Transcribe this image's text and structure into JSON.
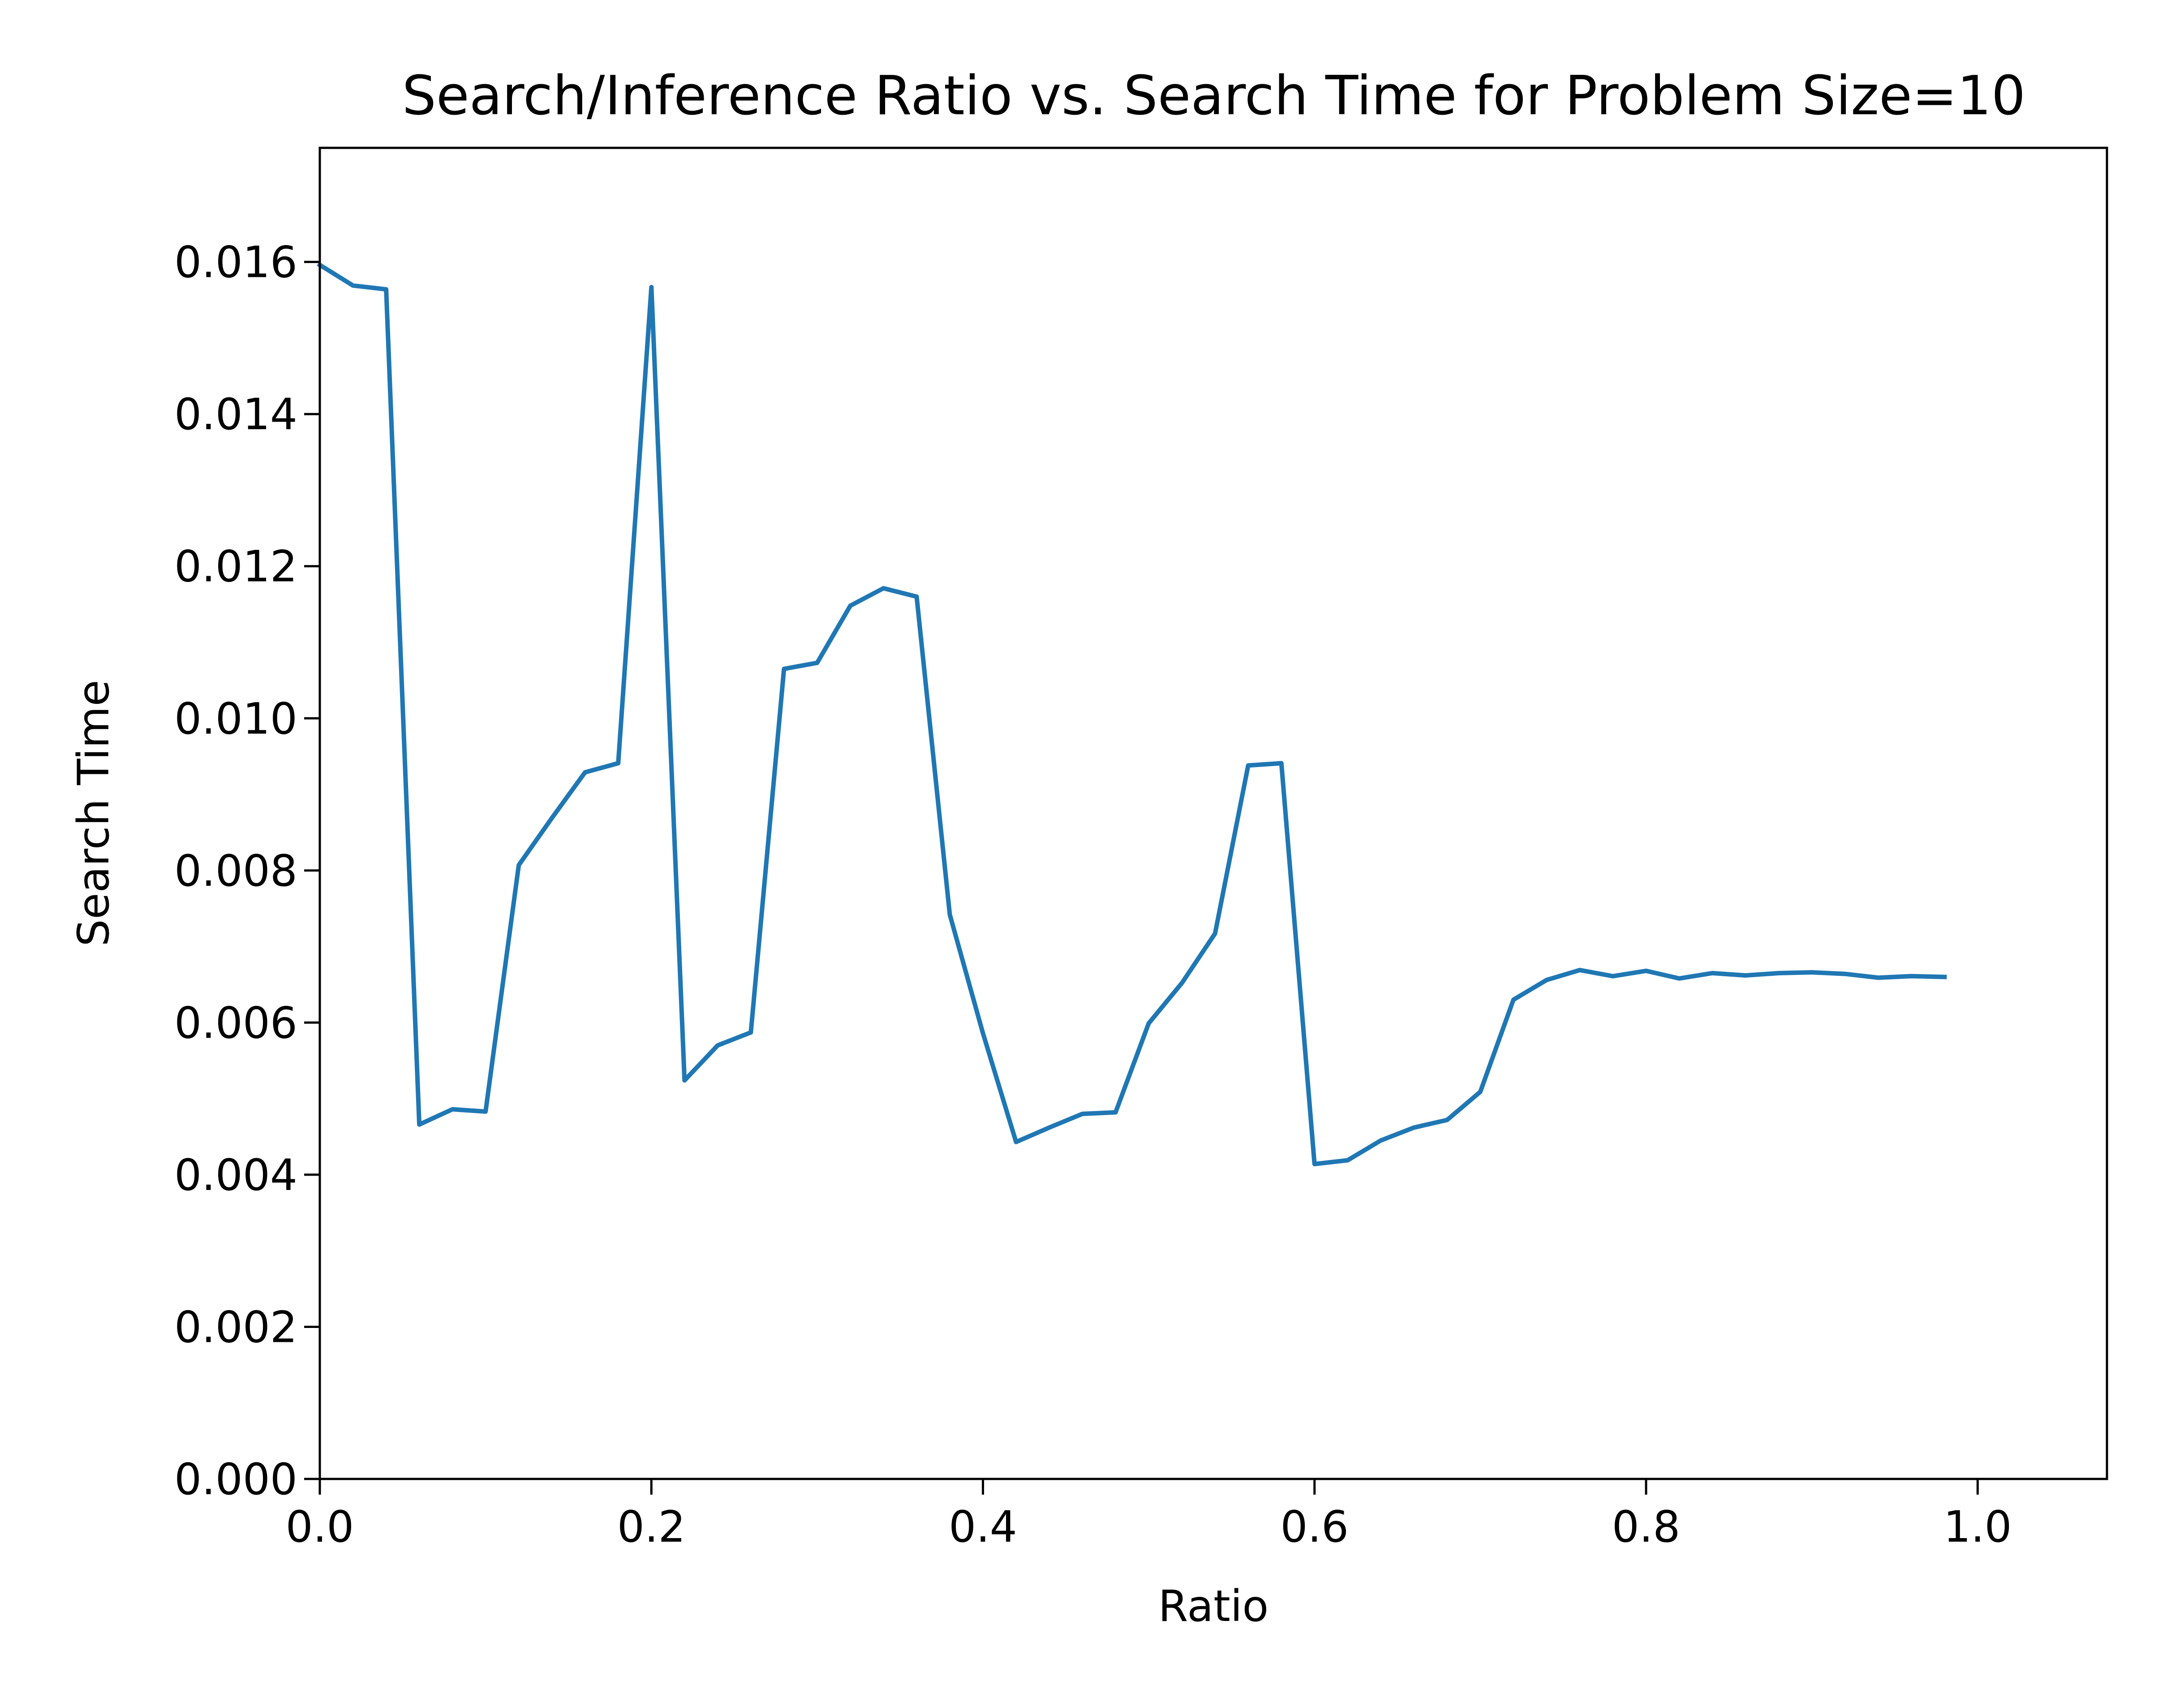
{
  "chart_data": {
    "type": "line",
    "title": "Search/Inference Ratio vs. Search Time for Problem Size=10",
    "xlabel": "Ratio",
    "ylabel": "Search Time",
    "xlim": [
      0.0,
      1.078
    ],
    "ylim": [
      0.0,
      0.0175
    ],
    "xticks": [
      "0.0",
      "0.2",
      "0.4",
      "0.6",
      "0.8",
      "1.0"
    ],
    "yticks": [
      "0.000",
      "0.002",
      "0.004",
      "0.006",
      "0.008",
      "0.010",
      "0.012",
      "0.014",
      "0.016"
    ],
    "grid": false,
    "series_color": "#1f77b4",
    "series": [
      {
        "x": [
          0.0,
          0.02,
          0.04,
          0.06,
          0.08,
          0.1,
          0.12,
          0.14,
          0.16,
          0.18,
          0.2,
          0.22,
          0.24,
          0.26,
          0.28,
          0.3,
          0.32,
          0.34,
          0.36,
          0.38,
          0.4,
          0.42,
          0.44,
          0.46,
          0.48,
          0.5,
          0.52,
          0.54,
          0.56,
          0.58,
          0.6,
          0.62,
          0.64,
          0.66,
          0.68,
          0.7,
          0.72,
          0.74,
          0.76,
          0.78,
          0.8,
          0.82,
          0.84,
          0.86,
          0.88,
          0.9,
          0.92,
          0.94,
          0.96,
          0.98
        ],
        "y": [
          0.01596,
          0.01569,
          0.01564,
          0.00466,
          0.00486,
          0.00483,
          0.00807,
          0.00869,
          0.00929,
          0.00941,
          0.01567,
          0.00524,
          0.0057,
          0.00587,
          0.01065,
          0.01073,
          0.01148,
          0.01171,
          0.0116,
          0.00742,
          0.00586,
          0.00443,
          0.00462,
          0.0048,
          0.00482,
          0.00599,
          0.00652,
          0.00717,
          0.00938,
          0.00941,
          0.00414,
          0.00419,
          0.00445,
          0.00462,
          0.00472,
          0.00509,
          0.0063,
          0.00656,
          0.00669,
          0.00661,
          0.00668,
          0.00658,
          0.00665,
          0.00662,
          0.00665,
          0.00666,
          0.00664,
          0.00659,
          0.00661,
          0.0066
        ]
      }
    ]
  }
}
